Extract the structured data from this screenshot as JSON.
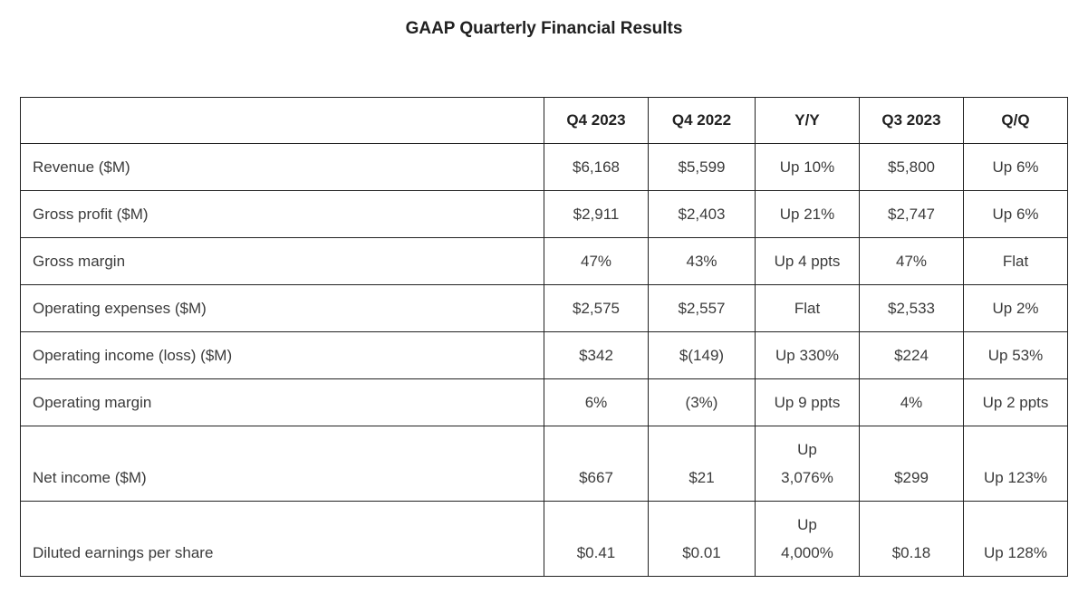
{
  "colors": {
    "text": "#3b3b3b",
    "heading": "#212121",
    "border": "#222222",
    "background": "#ffffff"
  },
  "chart_data": {
    "type": "table",
    "title": "GAAP Quarterly Financial Results",
    "columns": [
      "",
      "Q4 2023",
      "Q4 2022",
      "Y/Y",
      "Q3 2023",
      "Q/Q"
    ],
    "rows": [
      {
        "label": "Revenue ($M)",
        "values": [
          "$6,168",
          "$5,599",
          "Up 10%",
          "$5,800",
          "Up 6%"
        ]
      },
      {
        "label": "Gross profit ($M)",
        "values": [
          "$2,911",
          "$2,403",
          "Up 21%",
          "$2,747",
          "Up 6%"
        ]
      },
      {
        "label": "Gross margin",
        "values": [
          "47%",
          "43%",
          "Up 4 ppts",
          "47%",
          "Flat"
        ]
      },
      {
        "label": "Operating expenses ($M)",
        "values": [
          "$2,575",
          "$2,557",
          "Flat",
          "$2,533",
          "Up 2%"
        ]
      },
      {
        "label": "Operating income (loss) ($M)",
        "values": [
          "$342",
          "$(149)",
          "Up 330%",
          "$224",
          "Up 53%"
        ]
      },
      {
        "label": "Operating margin",
        "values": [
          "6%",
          "(3%)",
          "Up 9 ppts",
          "4%",
          "Up 2 ppts"
        ]
      },
      {
        "label": "Net income ($M)",
        "values": [
          "$667",
          "$21",
          "Up\n3,076%",
          "$299",
          "Up 123%"
        ]
      },
      {
        "label": "Diluted earnings per share",
        "values": [
          "$0.41",
          "$0.01",
          "Up\n4,000%",
          "$0.18",
          "Up 128%"
        ]
      }
    ]
  }
}
